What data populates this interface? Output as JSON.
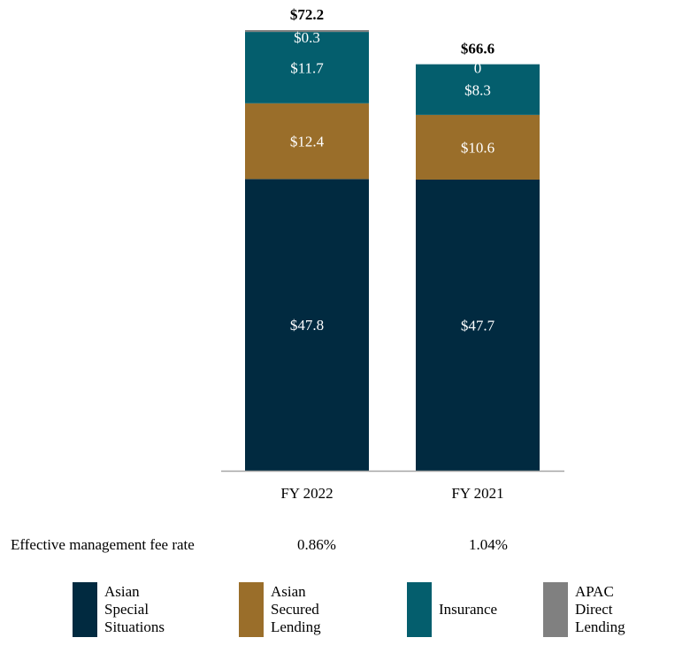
{
  "chart_data": {
    "type": "bar",
    "stacked": true,
    "categories": [
      "FY 2022",
      "FY 2021"
    ],
    "series": [
      {
        "name": "Asian Special Situations",
        "color": "#012a40",
        "values": [
          47.8,
          47.7
        ],
        "labels": [
          "$47.8",
          "$47.7"
        ]
      },
      {
        "name": "Asian Secured Lending",
        "color": "#9a6e2a",
        "values": [
          12.4,
          10.6
        ],
        "labels": [
          "$12.4",
          "$10.6"
        ]
      },
      {
        "name": "Insurance",
        "color": "#045e6d",
        "values": [
          11.7,
          8.3
        ],
        "labels": [
          "$11.7",
          "$8.3"
        ]
      },
      {
        "name": "APAC Direct Lending",
        "color": "#808080",
        "values": [
          0.3,
          0
        ],
        "labels": [
          "$0.3",
          "0"
        ]
      }
    ],
    "totals": [
      72.2,
      66.6
    ],
    "total_labels": [
      "$72.2",
      "$66.6"
    ],
    "ylim": [
      0,
      72.2
    ]
  },
  "fee_rate": {
    "title": "Effective management fee rate",
    "values": [
      "0.86%",
      "1.04%"
    ]
  },
  "legend": [
    {
      "label": "Asian Special\nSituations",
      "color": "#012a40"
    },
    {
      "label": "Asian Secured\nLending",
      "color": "#9a6e2a"
    },
    {
      "label": "Insurance",
      "color": "#045e6d"
    },
    {
      "label": "APAC Direct\nLending",
      "color": "#808080"
    }
  ]
}
